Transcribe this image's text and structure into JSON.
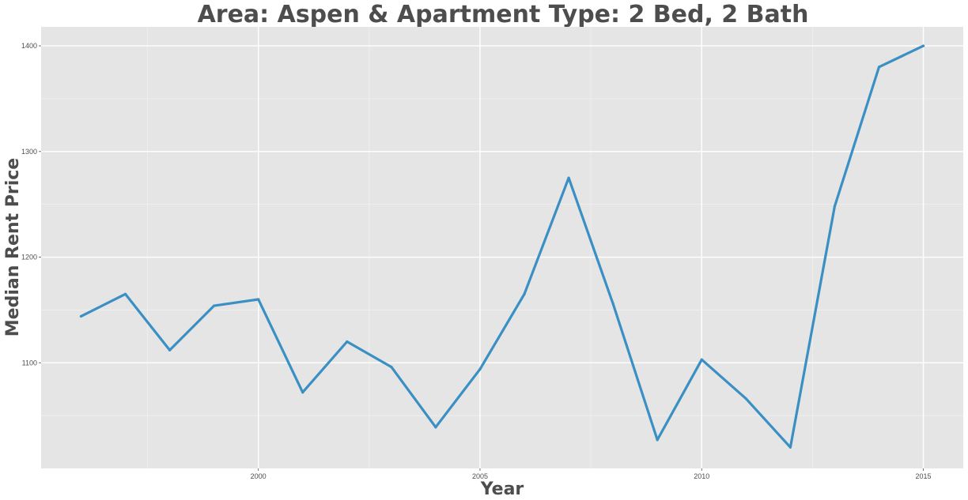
{
  "chart_data": {
    "type": "line",
    "title": "Area: Aspen & Apartment Type: 2 Bed, 2 Bath",
    "xlabel": "Year",
    "ylabel": "Median Rent Price",
    "x": [
      1996,
      1997,
      1998,
      1999,
      2000,
      2001,
      2002,
      2003,
      2004,
      2005,
      2006,
      2007,
      2008,
      2009,
      2010,
      2011,
      2012,
      2013,
      2014,
      2015
    ],
    "series": [
      {
        "values": [
          1144,
          1165,
          1112,
          1154,
          1160,
          1072,
          1120,
          1096,
          1039,
          1094,
          1165,
          1275,
          1156,
          1027,
          1103,
          1066,
          1020,
          1248,
          1380,
          1400
        ],
        "color": "#3a8fc3"
      }
    ],
    "xlim": [
      1995.1,
      2015.9
    ],
    "ylim": [
      1000,
      1418
    ],
    "xticks": [
      2000,
      2005,
      2010,
      2015
    ],
    "yticks": [
      1100,
      1200,
      1300,
      1400
    ],
    "x_tick_labels": [
      "2000",
      "2005",
      "2010",
      "2015"
    ],
    "y_tick_labels": [
      "1100",
      "1200",
      "1300",
      "1400"
    ],
    "grid": true,
    "panel_background": "#e5e5e5",
    "legend": "none"
  }
}
